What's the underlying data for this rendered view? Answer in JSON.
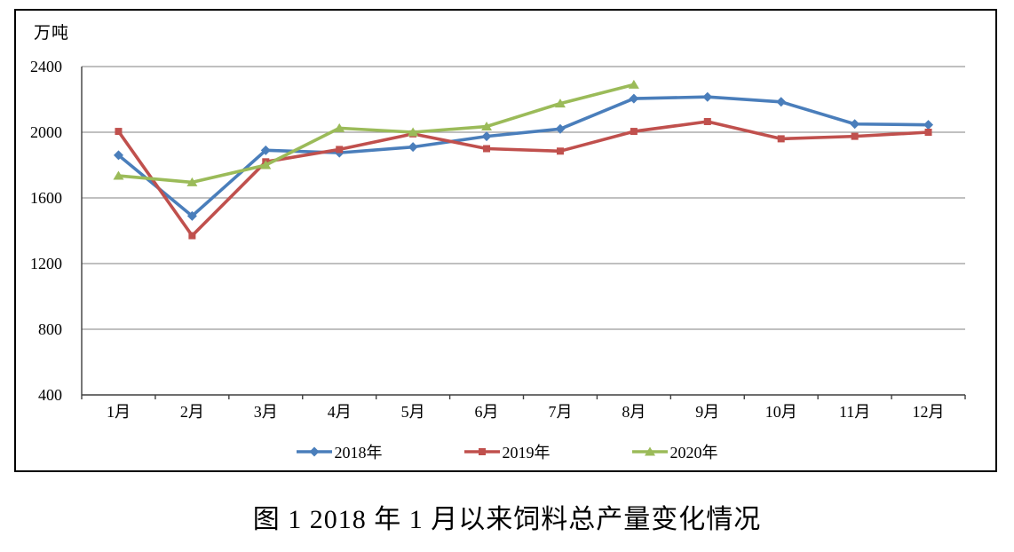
{
  "figure": {
    "unit_label": "万吨",
    "caption": "图 1  2018 年 1 月以来饲料总产量变化情况"
  },
  "chart_data": {
    "type": "line",
    "title": "",
    "xlabel": "",
    "ylabel": "万吨",
    "ylim": [
      400,
      2400
    ],
    "yticks": [
      400,
      800,
      1200,
      1600,
      2000,
      2400
    ],
    "grid": true,
    "legend_position": "bottom",
    "categories": [
      "1月",
      "2月",
      "3月",
      "4月",
      "5月",
      "6月",
      "7月",
      "8月",
      "9月",
      "10月",
      "11月",
      "12月"
    ],
    "series": [
      {
        "name": "2018年",
        "color": "#4a7ebb",
        "marker": "diamond",
        "values": [
          1860,
          1490,
          1890,
          1875,
          1910,
          1975,
          2020,
          2205,
          2215,
          2185,
          2050,
          2045
        ]
      },
      {
        "name": "2019年",
        "color": "#c0504d",
        "marker": "square",
        "values": [
          2005,
          1370,
          1820,
          1895,
          1990,
          1900,
          1885,
          2005,
          2065,
          1960,
          1975,
          2000
        ]
      },
      {
        "name": "2020年",
        "color": "#9bbb59",
        "marker": "triangle",
        "values": [
          1735,
          1695,
          1800,
          2025,
          2000,
          2035,
          2175,
          2290,
          null,
          null,
          null,
          null
        ]
      }
    ]
  }
}
